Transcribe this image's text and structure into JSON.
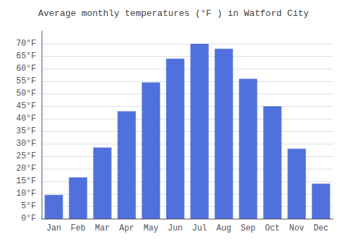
{
  "chart_data": {
    "type": "bar",
    "title": "Average monthly temperatures (°F ) in Watford City",
    "categories": [
      "Jan",
      "Feb",
      "Mar",
      "Apr",
      "May",
      "Jun",
      "Jul",
      "Aug",
      "Sep",
      "Oct",
      "Nov",
      "Dec"
    ],
    "values": [
      9.5,
      16.5,
      28.5,
      43,
      54.5,
      64,
      70,
      68,
      56,
      45,
      28,
      14
    ],
    "ylim": [
      0,
      75
    ],
    "yticks": [
      {
        "value": 0,
        "label": "0°F"
      },
      {
        "value": 5,
        "label": "5°F"
      },
      {
        "value": 10,
        "label": "10°F"
      },
      {
        "value": 15,
        "label": "15°F"
      },
      {
        "value": 20,
        "label": "20°F"
      },
      {
        "value": 25,
        "label": "25°F"
      },
      {
        "value": 30,
        "label": "30°F"
      },
      {
        "value": 35,
        "label": "35°F"
      },
      {
        "value": 40,
        "label": "40°F"
      },
      {
        "value": 45,
        "label": "45°F"
      },
      {
        "value": 50,
        "label": "50°F"
      },
      {
        "value": 55,
        "label": "55°F"
      },
      {
        "value": 60,
        "label": "60°F"
      },
      {
        "value": 65,
        "label": "65°F"
      },
      {
        "value": 70,
        "label": "70°F"
      }
    ],
    "grid": true
  }
}
